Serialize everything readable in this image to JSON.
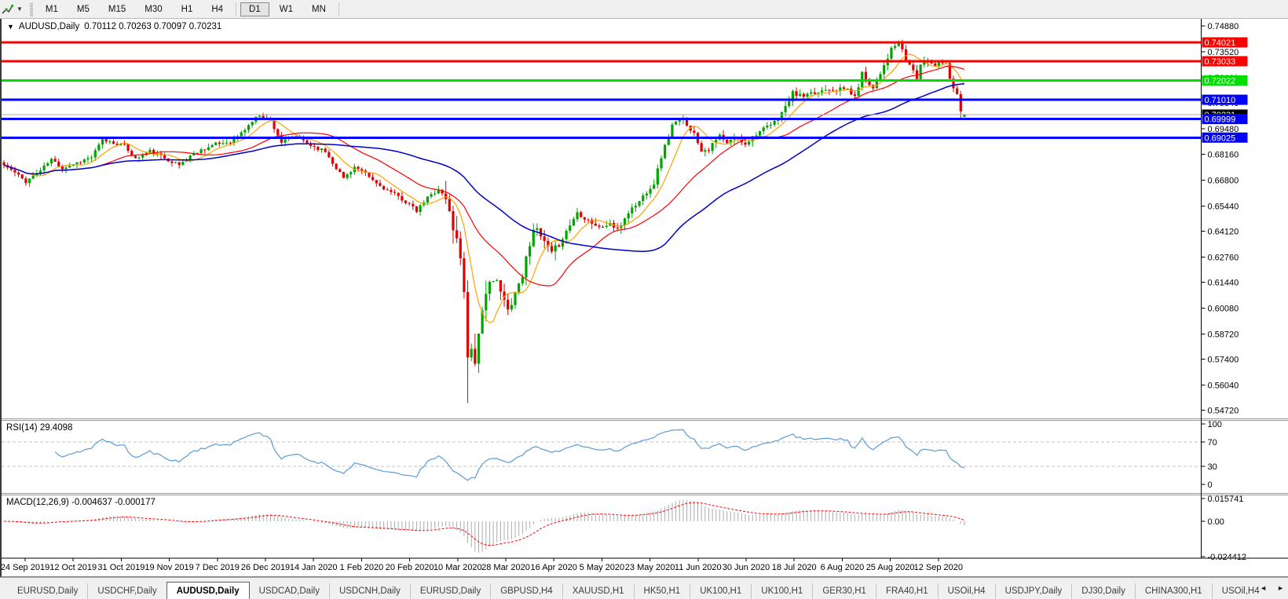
{
  "toolbar": {
    "chart_tool_icon": "crosshair-cursor-icon",
    "dropdown_caret": "▼",
    "timeframes": [
      {
        "label": "M1",
        "active": false
      },
      {
        "label": "M5",
        "active": false
      },
      {
        "label": "M15",
        "active": false
      },
      {
        "label": "M30",
        "active": false
      },
      {
        "label": "H1",
        "active": false
      },
      {
        "label": "H4",
        "active": false
      },
      {
        "label": "D1",
        "active": true
      },
      {
        "label": "W1",
        "active": false
      },
      {
        "label": "MN",
        "active": false
      }
    ]
  },
  "chart": {
    "title": {
      "expander": "▼",
      "symbol": "AUDUSD,Daily",
      "ohlc": "0.70112 0.70263 0.70097 0.70231"
    },
    "rsi_label": "RSI(14) 29.4098",
    "macd_label": "MACD(12,26,9) -0.004637 -0.000177"
  },
  "chart_data": {
    "type": "candlestick",
    "symbol": "AUDUSD",
    "timeframe": "Daily",
    "ohlc_display": {
      "open": "0.70112",
      "high": "0.70263",
      "low": "0.70097",
      "close": "0.70231"
    },
    "colors": {
      "bull": "#00A400",
      "bear": "#E00000",
      "background": "#FFFFFF",
      "axis_text": "#000000",
      "hline_red": "#FF0000",
      "hline_green": "#00DE00",
      "hline_blue": "#0000FF",
      "price_line": "#ABABAB",
      "price_label_bg": "#000000",
      "rsi_line": "#5B9BD5",
      "rsi_levels": "#C2C2C2",
      "macd_hist": "#ABABAB",
      "macd_signal": "#FF0000"
    },
    "price_axis": {
      "ticks": [
        "0.74880",
        "0.73520",
        "0.72160",
        "0.70840",
        "0.69480",
        "0.68160",
        "0.66800",
        "0.65440",
        "0.64120",
        "0.62760",
        "0.61440",
        "0.60080",
        "0.58720",
        "0.57400",
        "0.56040",
        "0.54720"
      ]
    },
    "x_axis": {
      "labels": [
        "24 Sep 2019",
        "12 Oct 2019",
        "31 Oct 2019",
        "19 Nov 2019",
        "7 Dec 2019",
        "26 Dec 2019",
        "14 Jan 2020",
        "1 Feb 2020",
        "20 Feb 2020",
        "10 Mar 2020",
        "28 Mar 2020",
        "16 Apr 2020",
        "5 May 2020",
        "23 May 2020",
        "11 Jun 2020",
        "30 Jun 2020",
        "18 Jul 2020",
        "6 Aug 2020",
        "25 Aug 2020",
        "12 Sep 2020"
      ]
    },
    "hlines": [
      {
        "price": 0.74021,
        "label": "0.74021",
        "color": "#FF0000"
      },
      {
        "price": 0.73033,
        "label": "0.73033",
        "color": "#FF0000"
      },
      {
        "price": 0.72022,
        "label": "0.72022",
        "color": "#00DE00"
      },
      {
        "price": 0.7101,
        "label": "0.71010",
        "color": "#0000FF"
      },
      {
        "price": 0.69999,
        "label": "0.69999",
        "color": "#0000FF"
      },
      {
        "price": 0.69025,
        "label": "0.69025",
        "color": "#0000FF"
      }
    ],
    "price_line": {
      "price": 0.70231,
      "label": "0.70231"
    },
    "candles": {
      "count": 264,
      "anchors": [
        [
          0,
          0.6758
        ],
        [
          3,
          0.6718
        ],
        [
          6,
          0.6672
        ],
        [
          10,
          0.673
        ],
        [
          13,
          0.6788
        ],
        [
          16,
          0.6742
        ],
        [
          20,
          0.6772
        ],
        [
          24,
          0.68
        ],
        [
          27,
          0.689
        ],
        [
          30,
          0.6875
        ],
        [
          33,
          0.686
        ],
        [
          36,
          0.679
        ],
        [
          40,
          0.6832
        ],
        [
          44,
          0.6795
        ],
        [
          48,
          0.6758
        ],
        [
          51,
          0.6808
        ],
        [
          54,
          0.6838
        ],
        [
          58,
          0.6868
        ],
        [
          62,
          0.6882
        ],
        [
          65,
          0.6925
        ],
        [
          68,
          0.6988
        ],
        [
          70,
          0.7023
        ],
        [
          73,
          0.6992
        ],
        [
          76,
          0.6878
        ],
        [
          80,
          0.6912
        ],
        [
          84,
          0.6862
        ],
        [
          88,
          0.683
        ],
        [
          90,
          0.6772
        ],
        [
          93,
          0.669
        ],
        [
          96,
          0.6748
        ],
        [
          99,
          0.671
        ],
        [
          102,
          0.6662
        ],
        [
          105,
          0.6625
        ],
        [
          108,
          0.6592
        ],
        [
          111,
          0.6552
        ],
        [
          113,
          0.6515
        ],
        [
          116,
          0.6588
        ],
        [
          119,
          0.6632
        ],
        [
          121,
          0.658
        ],
        [
          123,
          0.6435
        ],
        [
          125,
          0.6282
        ],
        [
          126,
          0.612
        ],
        [
          127,
          0.5745
        ],
        [
          128,
          0.5802
        ],
        [
          129,
          0.5738
        ],
        [
          131,
          0.5965
        ],
        [
          133,
          0.6165
        ],
        [
          135,
          0.614
        ],
        [
          138,
          0.5995
        ],
        [
          140,
          0.6092
        ],
        [
          142,
          0.6182
        ],
        [
          145,
          0.6435
        ],
        [
          148,
          0.6352
        ],
        [
          150,
          0.6288
        ],
        [
          153,
          0.6378
        ],
        [
          157,
          0.651
        ],
        [
          160,
          0.6472
        ],
        [
          163,
          0.6428
        ],
        [
          166,
          0.6452
        ],
        [
          168,
          0.6415
        ],
        [
          171,
          0.6512
        ],
        [
          174,
          0.6568
        ],
        [
          176,
          0.6622
        ],
        [
          178,
          0.6665
        ],
        [
          180,
          0.6802
        ],
        [
          183,
          0.6968
        ],
        [
          186,
          0.7
        ],
        [
          189,
          0.6922
        ],
        [
          191,
          0.6838
        ],
        [
          193,
          0.6842
        ],
        [
          196,
          0.6912
        ],
        [
          198,
          0.6868
        ],
        [
          200,
          0.6905
        ],
        [
          203,
          0.6872
        ],
        [
          206,
          0.6925
        ],
        [
          208,
          0.6945
        ],
        [
          211,
          0.6982
        ],
        [
          214,
          0.7062
        ],
        [
          216,
          0.7135
        ],
        [
          219,
          0.7118
        ],
        [
          223,
          0.714
        ],
        [
          225,
          0.7162
        ],
        [
          228,
          0.7155
        ],
        [
          231,
          0.7158
        ],
        [
          233,
          0.7112
        ],
        [
          235,
          0.724
        ],
        [
          238,
          0.7162
        ],
        [
          241,
          0.7285
        ],
        [
          243,
          0.7365
        ],
        [
          245,
          0.7397
        ],
        [
          247,
          0.7312
        ],
        [
          249,
          0.7255
        ],
        [
          250,
          0.7215
        ],
        [
          251,
          0.7285
        ],
        [
          253,
          0.7302
        ],
        [
          255,
          0.7282
        ],
        [
          256,
          0.7305
        ],
        [
          257,
          0.73
        ],
        [
          258,
          0.729
        ],
        [
          259,
          0.7222
        ],
        [
          260,
          0.717
        ],
        [
          261,
          0.7125
        ],
        [
          262,
          0.7048
        ],
        [
          263,
          0.70231
        ]
      ],
      "vol_zones": [
        [
          0,
          120,
          0.0036
        ],
        [
          121,
          132,
          0.014
        ],
        [
          133,
          152,
          0.008
        ],
        [
          153,
          178,
          0.0055
        ],
        [
          179,
          263,
          0.0045
        ]
      ],
      "overrides": {
        "127": {
          "l": 0.551
        },
        "245": {
          "h": 0.7413
        },
        "262": {
          "l": 0.7002
        },
        "263": {
          "o": 0.70112,
          "h": 0.70263,
          "l": 0.70097,
          "c": 0.70231
        }
      }
    },
    "moving_averages": [
      {
        "period": 8,
        "color": "#FFA200",
        "width": 1.2
      },
      {
        "period": 25,
        "color": "#FF0000",
        "width": 1.2
      },
      {
        "period": 55,
        "color": "#0000C8",
        "width": 1.5
      }
    ],
    "rsi": {
      "period": 14,
      "current": 29.4098,
      "levels": [
        70,
        30
      ],
      "ticks": [
        "100",
        "70",
        "30",
        "0"
      ]
    },
    "macd": {
      "fast": 12,
      "slow": 26,
      "signal_period": 9,
      "current": -0.004637,
      "current_signal": -0.000177,
      "ticks": [
        "0.015741",
        "0.00",
        "-0.024412"
      ]
    }
  },
  "tabbar": {
    "active_index": 2,
    "tabs": [
      "EURUSD,Daily",
      "USDCHF,Daily",
      "AUDUSD,Daily",
      "USDCAD,Daily",
      "USDCNH,Daily",
      "EURUSD,Daily",
      "GBPUSD,H4",
      "XAUUSD,H1",
      "HK50,H1",
      "UK100,H1",
      "UK100,H1",
      "GER30,H1",
      "FRA40,H1",
      "USOil,H4",
      "USDJPY,Daily",
      "DJ30,Daily",
      "CHINA300,H1",
      "USOil,H4"
    ],
    "scroll_left": "◄",
    "scroll_right": "►"
  }
}
